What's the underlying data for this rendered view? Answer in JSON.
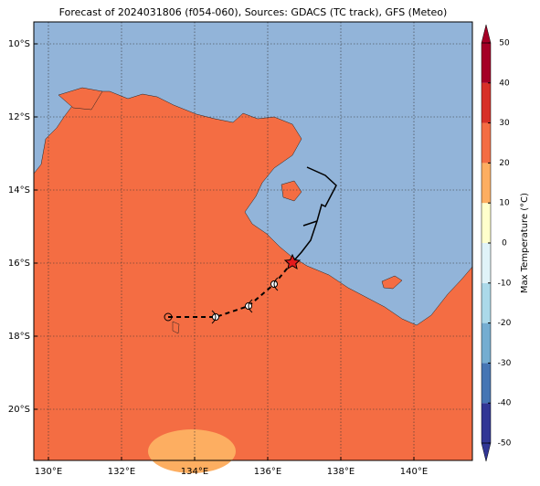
{
  "map": {
    "title": "Forecast of 2024031806 (f054-060), Sources: GDACS (TC track), GFS (Meteo)",
    "xlim": [
      129.6,
      141.6
    ],
    "ylim": [
      -21.4,
      -9.4
    ],
    "xticks": [
      {
        "value": 130,
        "label": "130°E"
      },
      {
        "value": 132,
        "label": "132°E"
      },
      {
        "value": 134,
        "label": "134°E"
      },
      {
        "value": 136,
        "label": "136°E"
      },
      {
        "value": 138,
        "label": "138°E"
      },
      {
        "value": 140,
        "label": "140°E"
      }
    ],
    "yticks": [
      {
        "value": -10,
        "label": "10°S"
      },
      {
        "value": -12,
        "label": "12°S"
      },
      {
        "value": -14,
        "label": "14°S"
      },
      {
        "value": -16,
        "label": "16°S"
      },
      {
        "value": -18,
        "label": "18°S"
      },
      {
        "value": -20,
        "label": "20°S"
      }
    ],
    "grid": true
  },
  "colorbar": {
    "label": "Max Temperature (°C)",
    "lim": [
      -50,
      50
    ],
    "ticks": [
      -50,
      -40,
      -30,
      -20,
      -10,
      0,
      10,
      20,
      30,
      40,
      50
    ],
    "colors": [
      "#313695",
      "#4575b4",
      "#74add1",
      "#abd9e9",
      "#e0f3f8",
      "#ffffcc",
      "#fdae61",
      "#f46d43",
      "#d73027",
      "#a50026"
    ]
  }
}
